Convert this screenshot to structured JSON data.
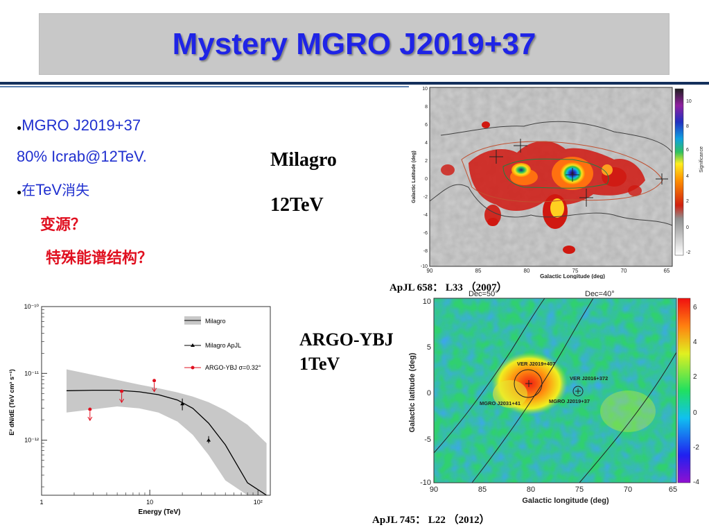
{
  "slide": {
    "title": "Mystery MGRO J2019+37",
    "bullets": {
      "b1_line1": "MGRO J2019+37",
      "b1_line2": "80% Icrab@12TeV.",
      "b2_pre": "在",
      "b2_mid": "TeV",
      "b2_post": "消失",
      "q1": "变源？",
      "q2": "特殊能谱结构？",
      "dot": "●"
    },
    "labels": {
      "milagro": "Milagro",
      "milagro_energy": "12TeV",
      "argo": "ARGO-YBJ",
      "argo_energy": "1TeV"
    },
    "refs": {
      "top": "ApJL 658： L33 （2007）",
      "bottom": "ApJL 745： L22 （2012）"
    }
  },
  "milagro_map": {
    "xlabel": "Galactic Longitude (deg)",
    "ylabel": "Galactic Latitude (deg)",
    "xticks": [
      "90",
      "85",
      "80",
      "75",
      "70",
      "65"
    ],
    "yticks": [
      "10",
      "8",
      "6",
      "4",
      "2",
      "0",
      "-2",
      "-4",
      "-6",
      "-8",
      "-10"
    ],
    "colorbar_label": "Significance",
    "colorbar_ticks": [
      "10",
      "8",
      "6",
      "4",
      "2",
      "0",
      "-2"
    ]
  },
  "argo_map": {
    "xlabel": "Galactic longitude (deg)",
    "ylabel": "Galactic latitude (deg)",
    "xticks": [
      "90",
      "85",
      "80",
      "75",
      "70",
      "65"
    ],
    "yticks": [
      "10",
      "5",
      "0",
      "-5",
      "-10"
    ],
    "colorbar_ticks": [
      "6",
      "4",
      "2",
      "0",
      "-2",
      "-4"
    ],
    "dec_labels": [
      "Dec=50°",
      "Dec=40°"
    ],
    "sources": [
      "VER J2019+407",
      "VER J2016+372",
      "MGRO J2031+41",
      "MGRO J2019+37"
    ]
  },
  "chart_data": {
    "type": "scatter",
    "xlabel": "Energy (TeV)",
    "ylabel": "E² dN/dE (TeV cm² s⁻¹)",
    "xscale": "log",
    "yscale": "log",
    "xlim": [
      1,
      130
    ],
    "ylim": [
      1.5e-13,
      1e-10
    ],
    "xticks": [
      "1",
      "10",
      "10²"
    ],
    "yticks": [
      "10⁻¹⁰",
      "10⁻¹¹",
      "10⁻¹²"
    ],
    "legend": [
      "Milagro",
      "Milagro ApJL",
      "ARGO-YBJ σ=0.32°"
    ],
    "legend_position": "top-right",
    "series": [
      {
        "name": "Milagro",
        "kind": "band",
        "x": [
          1.7,
          3,
          5,
          8,
          12,
          18,
          25,
          35,
          50,
          80,
          120
        ],
        "y_low": [
          2.6e-12,
          2.9e-12,
          3.2e-12,
          3e-12,
          2.6e-12,
          1.9e-12,
          1.2e-12,
          6e-13,
          2.5e-13,
          6e-14,
          1e-14
        ],
        "y_high": [
          1.15e-11,
          9.5e-12,
          8e-12,
          6.8e-12,
          6e-12,
          5.2e-12,
          4.5e-12,
          3.7e-12,
          2.8e-12,
          1.7e-12,
          9e-13
        ],
        "y_mid": [
          5.5e-12,
          5.6e-12,
          5.6e-12,
          5.3e-12,
          4.8e-12,
          4e-12,
          3e-12,
          1.8e-12,
          8.5e-13,
          2.3e-13,
          5e-14
        ]
      },
      {
        "name": "Milagro ApJL",
        "kind": "points",
        "x": [
          20,
          35
        ],
        "y": [
          3.5e-12,
          1e-12
        ],
        "yerr_low": [
          2.8e-12,
          9e-13
        ],
        "yerr_high": [
          4.2e-12,
          1.15e-12
        ]
      },
      {
        "name": "ARGO-YBJ σ=0.32°",
        "kind": "upper_limits",
        "x": [
          2.8,
          5.5,
          11
        ],
        "y": [
          2.9e-12,
          5.4e-12,
          7.8e-12
        ]
      }
    ]
  },
  "colors": {
    "title": "#1f24e6",
    "title_bar": "#c8c8c8",
    "bullet_text": "#1f2fcf",
    "question_red": "#e01020",
    "rule": "#14305c",
    "band": "#c8c8c8",
    "argo_points": "#e01020"
  }
}
